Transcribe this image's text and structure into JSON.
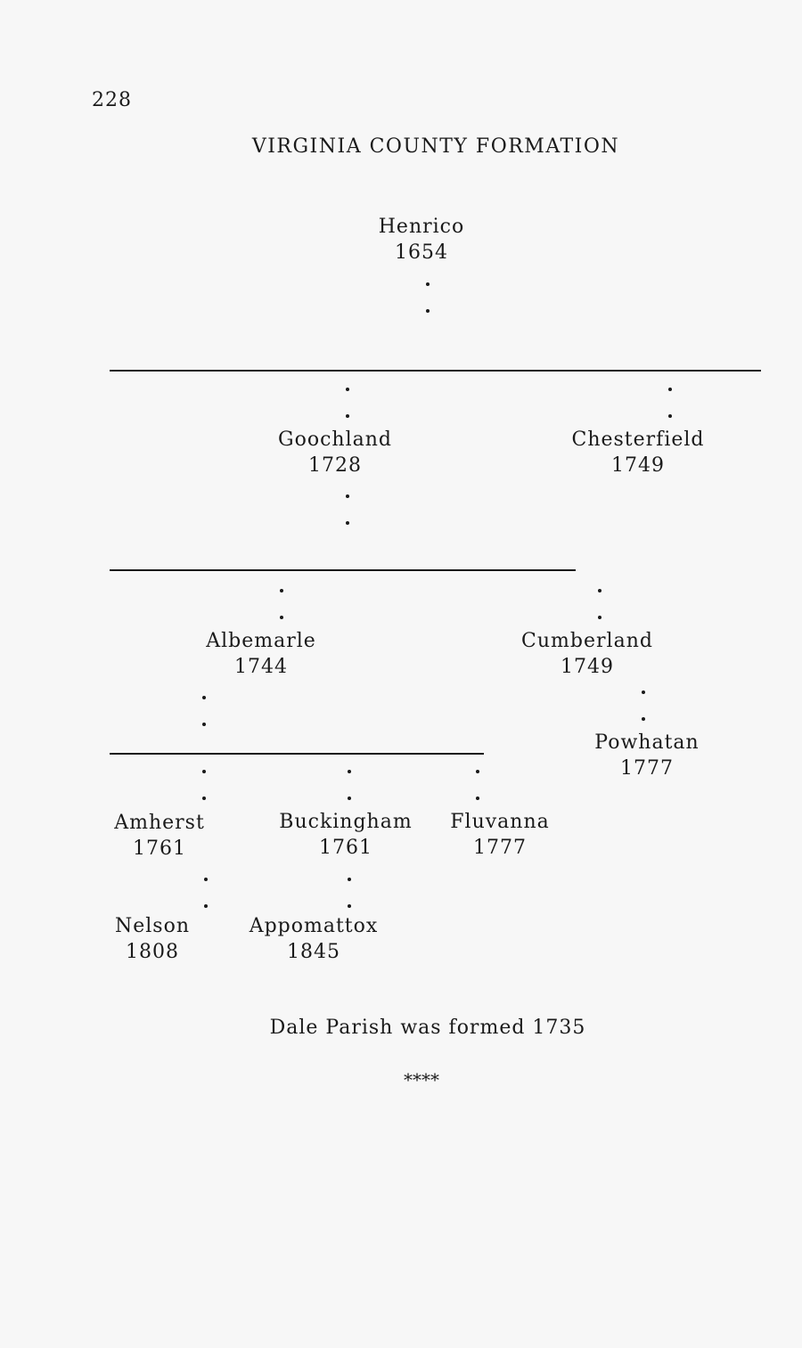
{
  "page_number": "228",
  "title": "VIRGINIA COUNTY FORMATION",
  "counties": {
    "henrico": {
      "name": "Henrico",
      "year": "1654"
    },
    "goochland": {
      "name": "Goochland",
      "year": "1728"
    },
    "chesterfield": {
      "name": "Chesterfield",
      "year": "1749"
    },
    "albemarle": {
      "name": "Albemarle",
      "year": "1744"
    },
    "cumberland": {
      "name": "Cumberland",
      "year": "1749"
    },
    "powhatan": {
      "name": "Powhatan",
      "year": "1777"
    },
    "amherst": {
      "name": "Amherst",
      "year": "1761"
    },
    "buckingham": {
      "name": "Buckingham",
      "year": "1761"
    },
    "fluvanna": {
      "name": "Fluvanna",
      "year": "1777"
    },
    "nelson": {
      "name": "Nelson",
      "year": "1808"
    },
    "appomattox": {
      "name": "Appomattox",
      "year": "1845"
    }
  },
  "note": "Dale Parish was formed 1735",
  "separator": "****"
}
